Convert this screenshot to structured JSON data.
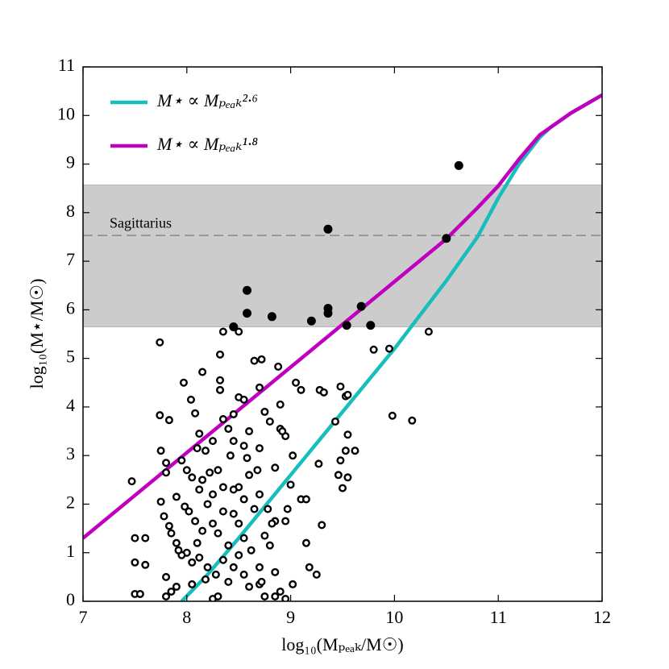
{
  "chart_data": {
    "type": "scatter",
    "xlabel": "log₁₀(Mₚₑₐₖ/M☉)",
    "ylabel": "log₁₀(M⋆/M☉)",
    "xlim": [
      7,
      12
    ],
    "ylim": [
      0,
      11
    ],
    "xticks": [
      7,
      8,
      9,
      10,
      11,
      12
    ],
    "yticks": [
      0,
      1,
      2,
      3,
      4,
      5,
      6,
      7,
      8,
      9,
      10,
      11
    ],
    "legend": "upper left",
    "band": {
      "range": [
        5.65,
        8.57
      ],
      "color": "#cccccc"
    },
    "reference_line": {
      "label": "Sagittarius",
      "y": 7.53,
      "color": "#888888"
    },
    "series": [
      {
        "type": "line",
        "name": "M⋆ ∝ Mₚₑₐₖ²·⁶",
        "color": "#17bebb",
        "x": [
          7.95,
          8.2,
          8.5,
          9,
          9.5,
          10,
          10.5,
          10.8,
          11,
          11.2,
          11.4,
          11.5,
          11.7,
          12
        ],
        "y": [
          0,
          0.55,
          1.3,
          2.6,
          3.9,
          5.2,
          6.6,
          7.5,
          8.3,
          9.0,
          9.55,
          9.75,
          10.05,
          10.42
        ]
      },
      {
        "type": "line",
        "name": "M⋆ ∝ Mₚₑₐₖ¹·⁸",
        "color": "#bf00bf",
        "x": [
          7,
          8,
          9,
          10,
          10.5,
          10.8,
          11,
          11.2,
          11.4,
          11.5,
          11.7,
          12
        ],
        "y": [
          1.3,
          3.06,
          4.82,
          6.58,
          7.46,
          8.1,
          8.55,
          9.1,
          9.6,
          9.75,
          10.05,
          10.42
        ]
      },
      {
        "type": "scatter",
        "marker": "open",
        "color": "#000000",
        "x": [
          7.74,
          7.47,
          7.5,
          7.6,
          7.5,
          7.5,
          7.55,
          7.6,
          8.35,
          8.5,
          8.32,
          8.32,
          8.32,
          8.15,
          7.97,
          8.04,
          8.08,
          7.74,
          7.83,
          8.12,
          8.25,
          8.45,
          8.5,
          8.55,
          8.7,
          8.65,
          8.72,
          8.88,
          9.05,
          9.1,
          9.28,
          9.32,
          9.48,
          9.53,
          9.55,
          9.8,
          9.95,
          10.33,
          9.98,
          10.17,
          9.43,
          9.55,
          9.53,
          9.48,
          9.46,
          9.55,
          9.5,
          9.62,
          9.27,
          9.3,
          9.15,
          9.18,
          9.25,
          9.1,
          9.15,
          9.0,
          8.97,
          8.85,
          8.95,
          9.02,
          8.95,
          8.9,
          8.92,
          8.8,
          8.75,
          8.9,
          8.6,
          8.55,
          8.45,
          8.42,
          8.7,
          8.68,
          8.85,
          8.6,
          8.5,
          8.45,
          8.55,
          8.45,
          8.35,
          8.5,
          8.25,
          8.3,
          8.15,
          8.1,
          8.0,
          7.95,
          7.9,
          7.85,
          7.8,
          7.85,
          7.8,
          7.9,
          8.05,
          8.2,
          8.25,
          8.3,
          8.4,
          8.45,
          8.5,
          8.55,
          8.62,
          8.7,
          8.7,
          8.72,
          8.75,
          8.85,
          8.9,
          8.95,
          9.02,
          8.85,
          8.75,
          8.8,
          8.82,
          7.75,
          7.8,
          7.8,
          7.75,
          7.95,
          8.0,
          8.05,
          8.12,
          8.2,
          8.15,
          8.25,
          8.35,
          7.9,
          7.98,
          8.02,
          8.08,
          7.78,
          7.83,
          7.92,
          8.05,
          8.12,
          8.18,
          8.28,
          8.35,
          8.4,
          8.55,
          8.6,
          8.3,
          8.22,
          8.1,
          8.18,
          8.4,
          8.35,
          8.58,
          8.7,
          8.78,
          8.65
        ],
        "y": [
          5.33,
          2.47,
          1.3,
          1.3,
          0.8,
          0.15,
          0.15,
          0.75,
          5.55,
          5.55,
          5.08,
          4.55,
          4.35,
          4.72,
          4.5,
          4.15,
          3.87,
          3.83,
          3.73,
          3.45,
          3.3,
          3.85,
          4.2,
          4.15,
          4.4,
          4.95,
          4.98,
          4.83,
          4.5,
          4.35,
          4.35,
          4.3,
          4.42,
          4.22,
          4.25,
          5.18,
          5.2,
          5.55,
          3.82,
          3.72,
          3.7,
          3.43,
          3.1,
          2.9,
          2.6,
          2.55,
          2.33,
          3.1,
          2.83,
          1.57,
          1.2,
          0.7,
          0.55,
          2.1,
          2.1,
          2.4,
          1.9,
          1.65,
          1.65,
          3.0,
          3.4,
          3.55,
          3.5,
          3.7,
          3.9,
          4.05,
          3.5,
          3.2,
          3.3,
          3.0,
          3.15,
          2.7,
          2.75,
          2.6,
          2.35,
          2.3,
          2.1,
          1.8,
          1.85,
          1.6,
          1.6,
          1.4,
          1.45,
          1.2,
          1.0,
          0.95,
          1.2,
          1.4,
          0.5,
          0.2,
          0.1,
          0.3,
          0.35,
          0.7,
          0.05,
          0.1,
          0.4,
          0.7,
          0.95,
          1.3,
          1.05,
          0.7,
          0.35,
          0.4,
          0.1,
          0.1,
          0.2,
          0.05,
          0.35,
          0.6,
          1.35,
          1.15,
          1.6,
          2.05,
          2.65,
          2.85,
          3.1,
          2.9,
          2.7,
          2.55,
          2.3,
          2.0,
          2.5,
          2.2,
          2.35,
          2.15,
          1.95,
          1.85,
          1.65,
          1.75,
          1.55,
          1.05,
          0.8,
          0.9,
          0.45,
          0.55,
          0.85,
          1.15,
          0.55,
          0.3,
          2.7,
          2.65,
          3.15,
          3.1,
          3.55,
          3.75,
          2.95,
          2.2,
          1.9,
          1.9
        ]
      },
      {
        "type": "scatter",
        "marker": "filled",
        "color": "#000000",
        "x": [
          8.45,
          8.58,
          8.58,
          8.82,
          9.2,
          9.36,
          9.36,
          9.36,
          9.54,
          9.68,
          9.77,
          10.5,
          10.62
        ],
        "y": [
          5.65,
          6.4,
          5.93,
          5.86,
          5.77,
          7.66,
          6.03,
          5.93,
          5.68,
          6.07,
          5.68,
          7.47,
          8.97
        ]
      }
    ]
  }
}
